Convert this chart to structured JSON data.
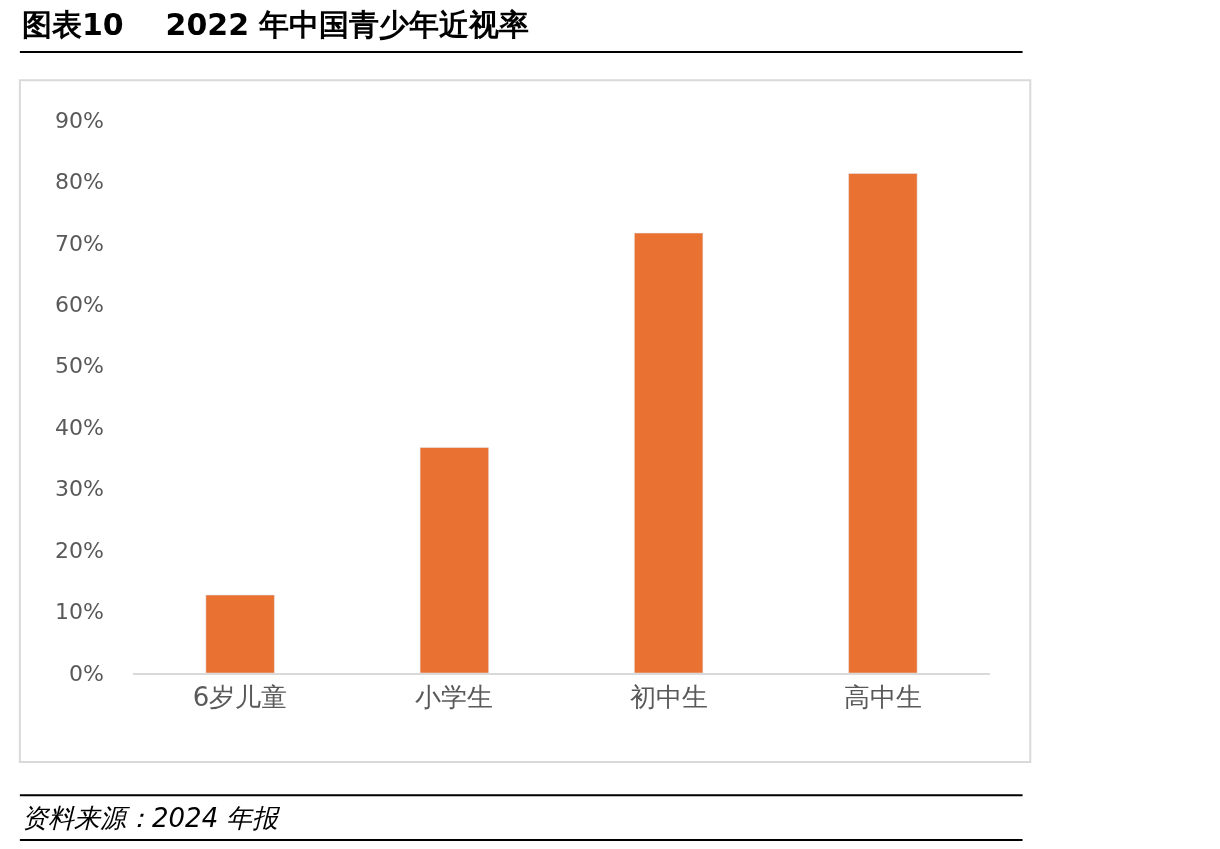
{
  "chart_data": {
    "type": "bar",
    "title": "图表10    2022 年中国青少年近视率",
    "categories": [
      "6岁儿童",
      "小学生",
      "初中生",
      "高中生"
    ],
    "values": [
      12.7,
      36.7,
      71.6,
      81.3
    ],
    "color": "#e97132",
    "ylim": [
      0,
      90
    ],
    "yticks": [
      {
        "value": 0,
        "label": "0%"
      },
      {
        "value": 10,
        "label": "10%"
      },
      {
        "value": 20,
        "label": "20%"
      },
      {
        "value": 30,
        "label": "30%"
      },
      {
        "value": 40,
        "label": "40%"
      },
      {
        "value": 50,
        "label": "50%"
      },
      {
        "value": 60,
        "label": "60%"
      },
      {
        "value": 70,
        "label": "70%"
      },
      {
        "value": 80,
        "label": "80%"
      },
      {
        "value": 90,
        "label": "90%"
      }
    ],
    "annotations": [
      "资料来源：2024 年报"
    ]
  }
}
